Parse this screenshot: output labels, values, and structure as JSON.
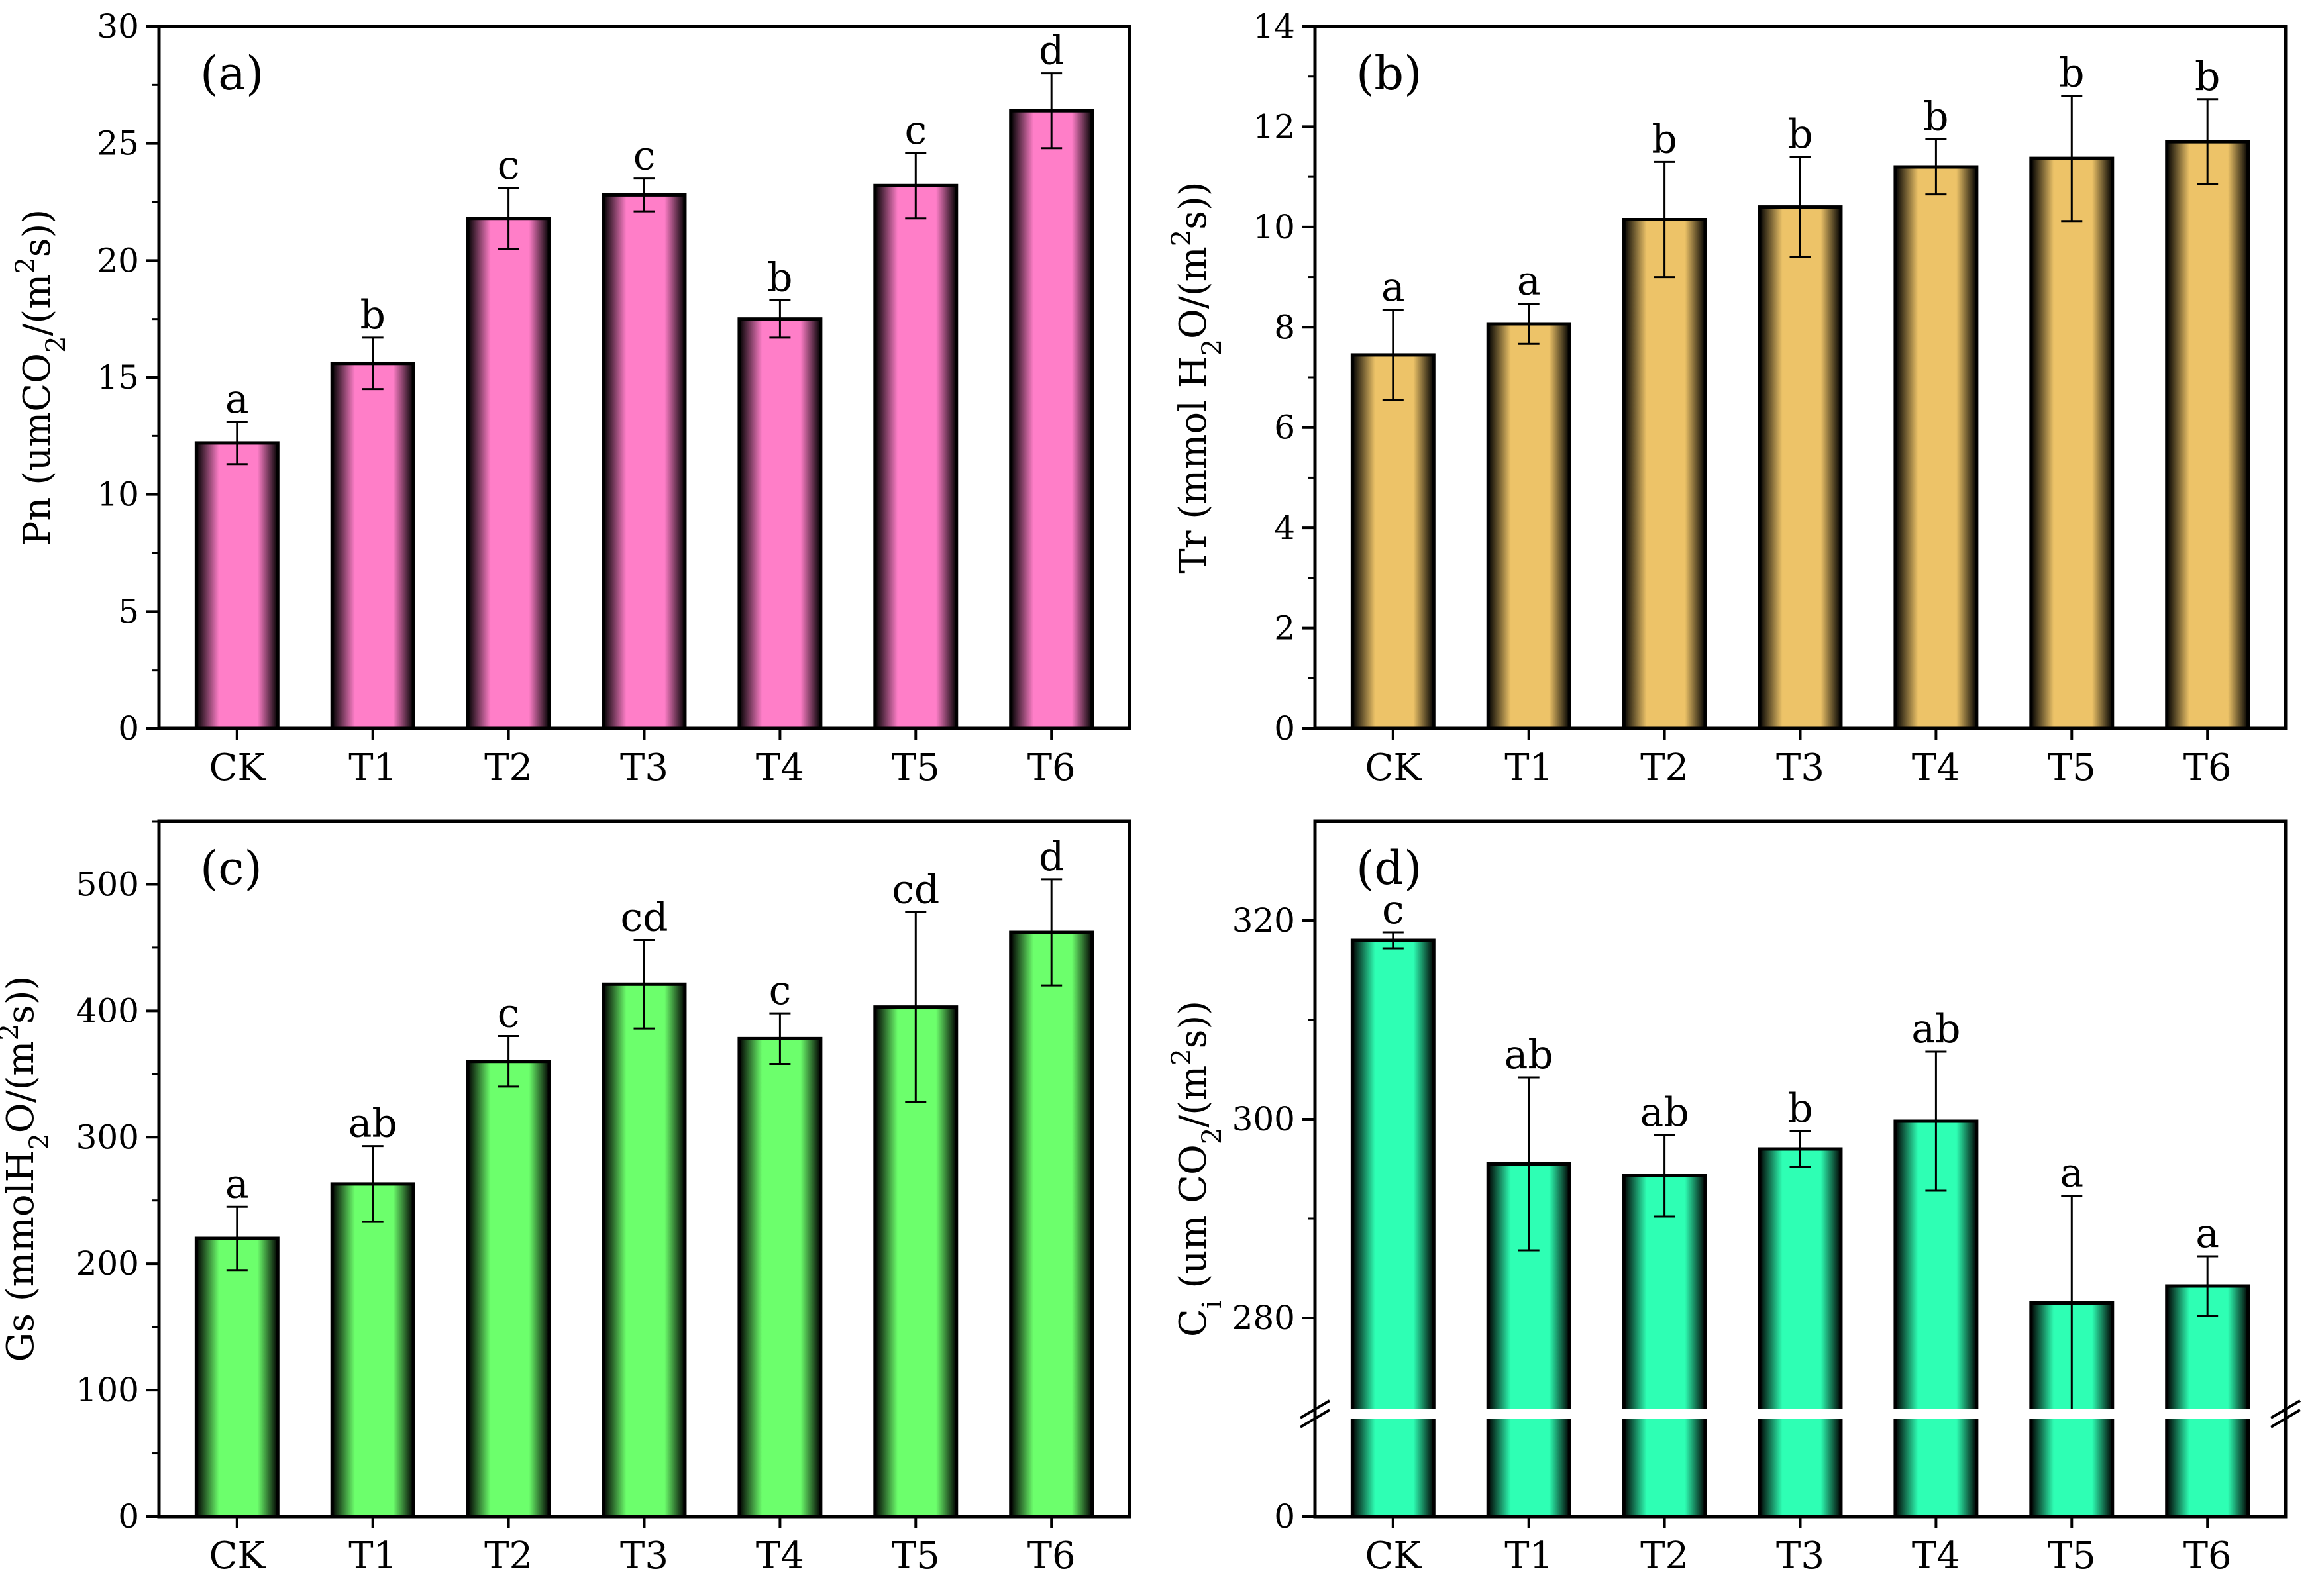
{
  "colors": {
    "panel_a_bar": "#ff7ec8",
    "panel_b_bar": "#edc368",
    "panel_c_bar": "#6cff6c",
    "panel_d_bar": "#2effb4",
    "axis": "#000000",
    "background": "#ffffff"
  },
  "chart_data": [
    {
      "panel": "(a)",
      "type": "bar",
      "categories": [
        "CK",
        "T1",
        "T2",
        "T3",
        "T4",
        "T5",
        "T6"
      ],
      "values": [
        12.2,
        15.6,
        21.8,
        22.8,
        17.5,
        23.2,
        26.4
      ],
      "errors": [
        0.9,
        1.1,
        1.3,
        0.7,
        0.8,
        1.4,
        1.6
      ],
      "significance": [
        "a",
        "b",
        "c",
        "c",
        "b",
        "c",
        "d"
      ],
      "ylabel_main": "Pn (umCO",
      "ylabel_sub": "2",
      "ylabel_mid": "/(m",
      "ylabel_sup": "2",
      "ylabel_end": "s))",
      "ylim": [
        0,
        30
      ],
      "yticks": [
        "0",
        "5",
        "10",
        "15",
        "20",
        "25",
        "30"
      ],
      "ytick_values": [
        0,
        5,
        10,
        15,
        20,
        25,
        30
      ],
      "xlabel": ""
    },
    {
      "panel": "(b)",
      "type": "bar",
      "categories": [
        "CK",
        "T1",
        "T2",
        "T3",
        "T4",
        "T5",
        "T6"
      ],
      "values": [
        7.45,
        8.07,
        10.15,
        10.4,
        11.2,
        11.37,
        11.7
      ],
      "errors": [
        0.9,
        0.4,
        1.15,
        1.0,
        0.55,
        1.25,
        0.85
      ],
      "significance": [
        "a",
        "a",
        "b",
        "b",
        "b",
        "b",
        "b"
      ],
      "ylabel_main": "Tr (mmol H",
      "ylabel_sub": "2",
      "ylabel_mid": "O/(m",
      "ylabel_sup": "2",
      "ylabel_end": "s))",
      "ylim": [
        0,
        14
      ],
      "yticks": [
        "0",
        "2",
        "4",
        "6",
        "8",
        "10",
        "12",
        "14"
      ],
      "ytick_values": [
        0,
        2,
        4,
        6,
        8,
        10,
        12,
        14
      ],
      "xlabel": ""
    },
    {
      "panel": "(c)",
      "type": "bar",
      "categories": [
        "CK",
        "T1",
        "T2",
        "T3",
        "T4",
        "T5",
        "T6"
      ],
      "values": [
        220,
        263,
        360,
        421,
        378,
        403,
        462
      ],
      "errors": [
        25,
        30,
        20,
        35,
        20,
        75,
        42
      ],
      "significance": [
        "a",
        "ab",
        "c",
        "cd",
        "c",
        "cd",
        "d"
      ],
      "ylabel_main": "Gs (mmolH",
      "ylabel_sub": "2",
      "ylabel_mid": "O/(m",
      "ylabel_sup": "2",
      "ylabel_end": "s))",
      "ylim": [
        0,
        550
      ],
      "yticks": [
        "0",
        "100",
        "200",
        "300",
        "400",
        "500"
      ],
      "ytick_values": [
        0,
        100,
        200,
        300,
        400,
        500
      ],
      "xlabel": ""
    },
    {
      "panel": "(d)",
      "type": "bar",
      "categories": [
        "CK",
        "T1",
        "T2",
        "T3",
        "T4",
        "T5",
        "T6"
      ],
      "values": [
        318,
        295.5,
        294.3,
        297.0,
        299.8,
        281.5,
        283.2
      ],
      "errors": [
        0.8,
        8.7,
        4.1,
        1.8,
        7.0,
        10.8,
        3.0
      ],
      "significance": [
        "c",
        "ab",
        "ab",
        "b",
        "ab",
        "a",
        "a"
      ],
      "ylabel_main": "C",
      "ylabel_sub": "i",
      "ylabel_mid": " (um CO",
      "ylabel_sub2": "2",
      "ylabel_end": "/(m",
      "ylabel_sup": "2",
      "ylabel_end2": "s))",
      "axis_break": true,
      "ylim_lower": [
        0,
        14
      ],
      "ylim_upper": [
        271,
        330
      ],
      "yticks": [
        "0",
        "280",
        "300",
        "320"
      ],
      "ytick_values": [
        0,
        280,
        300,
        320
      ],
      "xlabel": ""
    }
  ]
}
